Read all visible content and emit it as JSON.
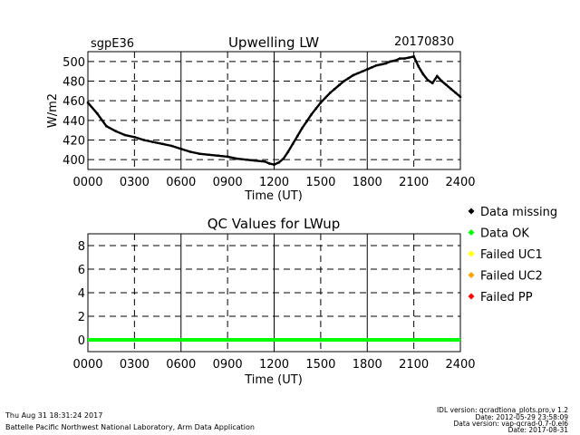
{
  "header": {
    "site": "sgpE36",
    "title": "Upwelling LW",
    "date": "20170830"
  },
  "footer": {
    "timestamp": "Thu Aug 31 18:31:24 2017",
    "institution": "Battelle Pacific Northwest National Laboratory, Arm Data Application",
    "idl_version": "IDL version: qcradtiona_plots.pro,v 1.2",
    "code_date": "Date: 2012-05-29 23:58:09",
    "data_version": "Data version: vap-qcrad-0.7-0.el6",
    "data_date": "Date: 2017-08-31"
  },
  "legend": {
    "items": [
      {
        "label": "Data missing",
        "color": "#000000"
      },
      {
        "label": "Data OK",
        "color": "#00ff00"
      },
      {
        "label": "Failed UC1",
        "color": "#ffff00"
      },
      {
        "label": "Failed UC2",
        "color": "#ffa500"
      },
      {
        "label": "Failed PP",
        "color": "#ff0000"
      }
    ]
  },
  "chart_data": [
    {
      "type": "scatter",
      "title": "Upwelling LW",
      "xlabel": "Time (UT)",
      "ylabel": "W/m2",
      "xlim": [
        0,
        2400
      ],
      "ylim": [
        390,
        510
      ],
      "grid": true,
      "xticks": [
        "0000",
        "0300",
        "0600",
        "0900",
        "1200",
        "1500",
        "1800",
        "2100",
        "2400"
      ],
      "yticks": [
        "400",
        "420",
        "440",
        "460",
        "480",
        "500"
      ],
      "series": [
        {
          "name": "Upwelling LW",
          "color": "#000000",
          "x": [
            0,
            60,
            120,
            180,
            240,
            300,
            360,
            420,
            480,
            540,
            600,
            660,
            720,
            780,
            840,
            900,
            960,
            1020,
            1080,
            1140,
            1170,
            1200,
            1230,
            1260,
            1290,
            1320,
            1350,
            1380,
            1410,
            1440,
            1470,
            1500,
            1530,
            1560,
            1590,
            1620,
            1650,
            1680,
            1710,
            1740,
            1770,
            1800,
            1830,
            1860,
            1890,
            1920,
            1950,
            1980,
            2010,
            2040,
            2070,
            2100,
            2130,
            2160,
            2190,
            2220,
            2250,
            2280,
            2310,
            2340,
            2370,
            2400
          ],
          "y": [
            458,
            447,
            434,
            429,
            425,
            423,
            420,
            418,
            416,
            414,
            411,
            408,
            406,
            405,
            404,
            403,
            401,
            400,
            399,
            398,
            396,
            395,
            397,
            401,
            408,
            416,
            424,
            432,
            439,
            446,
            452,
            458,
            463,
            468,
            472,
            476,
            480,
            483,
            486,
            488,
            490,
            492,
            494,
            496,
            497,
            498,
            500,
            501,
            503,
            503,
            504,
            505,
            495,
            487,
            481,
            478,
            485,
            480,
            476,
            472,
            468,
            464
          ]
        }
      ]
    },
    {
      "type": "line",
      "title": "QC Values for LWup",
      "xlabel": "Time (UT)",
      "ylabel": "",
      "xlim": [
        0,
        2400
      ],
      "ylim": [
        -1,
        9
      ],
      "grid": true,
      "xticks": [
        "0000",
        "0300",
        "0600",
        "0900",
        "1200",
        "1500",
        "1800",
        "2100",
        "2400"
      ],
      "yticks": [
        "0",
        "2",
        "4",
        "6",
        "8"
      ],
      "series": [
        {
          "name": "QC flag (Data OK)",
          "color": "#00ff00",
          "x": [
            0,
            2400
          ],
          "y": [
            0,
            0
          ]
        }
      ]
    }
  ]
}
